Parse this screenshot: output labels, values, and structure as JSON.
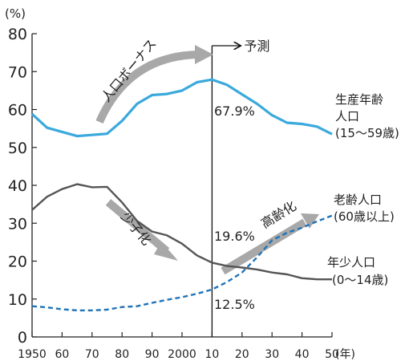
{
  "chart_data": {
    "type": "line",
    "ylabel": "(%)",
    "xlabel": "(年)",
    "ylim": [
      0,
      80
    ],
    "xlim": [
      1950,
      2050
    ],
    "y_ticks": [
      0,
      10,
      20,
      30,
      40,
      50,
      60,
      70,
      80
    ],
    "x_ticks": [
      {
        "value": 1950,
        "label": "1950"
      },
      {
        "value": 1960,
        "label": "60"
      },
      {
        "value": 1970,
        "label": "70"
      },
      {
        "value": 1980,
        "label": "80"
      },
      {
        "value": 1990,
        "label": "90"
      },
      {
        "value": 2000,
        "label": "2000"
      },
      {
        "value": 2010,
        "label": "10"
      },
      {
        "value": 2020,
        "label": "20"
      },
      {
        "value": 2030,
        "label": "30"
      },
      {
        "value": 2040,
        "label": "40"
      },
      {
        "value": 2050,
        "label": "50"
      }
    ],
    "divider_x": 2010,
    "projection_label": "予測",
    "series": [
      {
        "name": "生産年齢人口(15〜59歳)",
        "label_lines": [
          "生産年齢",
          "人口",
          "(15〜59歳)"
        ],
        "color": "#3aa9dc",
        "style": "solid",
        "x": [
          1950,
          1955,
          1960,
          1965,
          1970,
          1975,
          1980,
          1985,
          1990,
          1995,
          2000,
          2005,
          2010,
          2015,
          2020,
          2025,
          2030,
          2035,
          2040,
          2045,
          2050
        ],
        "y": [
          58.8,
          55.2,
          54.1,
          53.0,
          53.3,
          53.6,
          57.0,
          61.5,
          63.8,
          64.1,
          65.0,
          67.2,
          67.9,
          66.5,
          64.0,
          61.5,
          58.5,
          56.5,
          56.2,
          55.5,
          53.5
        ]
      },
      {
        "name": "年少人口(0〜14歳)",
        "label_lines": [
          "年少人口",
          "(0〜14歳)"
        ],
        "color": "#555555",
        "style": "solid",
        "x": [
          1950,
          1955,
          1960,
          1965,
          1970,
          1975,
          1980,
          1985,
          1990,
          1995,
          2000,
          2005,
          2010,
          2015,
          2020,
          2025,
          2030,
          2035,
          2040,
          2045,
          2050
        ],
        "y": [
          33.5,
          37.0,
          39.0,
          40.3,
          39.5,
          39.6,
          35.5,
          30.6,
          27.8,
          26.8,
          24.6,
          21.5,
          19.6,
          18.7,
          18.3,
          17.8,
          17.0,
          16.5,
          15.5,
          15.2,
          15.2
        ]
      },
      {
        "name": "老齢人口(60歳以上)",
        "label_lines": [
          "老齢人口",
          "(60歳以上)"
        ],
        "color": "#1f73b8",
        "style": "dashed",
        "x": [
          1950,
          1955,
          1960,
          1965,
          1970,
          1975,
          1980,
          1985,
          1990,
          1995,
          2000,
          2005,
          2010,
          2015,
          2020,
          2025,
          2030,
          2035,
          2040,
          2045,
          2050
        ],
        "y": [
          8.1,
          7.8,
          7.3,
          7.0,
          7.0,
          7.2,
          7.9,
          8.1,
          9.0,
          9.8,
          10.5,
          11.4,
          12.5,
          14.5,
          17.0,
          21.0,
          25.5,
          27.5,
          28.8,
          30.5,
          32.0
        ]
      }
    ],
    "annotations": [
      {
        "text": "67.9%",
        "x": 2010,
        "y": 67.9
      },
      {
        "text": "19.6%",
        "x": 2010,
        "y": 19.6
      },
      {
        "text": "12.5%",
        "x": 2010,
        "y": 12.5
      },
      {
        "text": "人口ボーナス"
      },
      {
        "text": "少子化"
      },
      {
        "text": "高齢化"
      }
    ]
  }
}
